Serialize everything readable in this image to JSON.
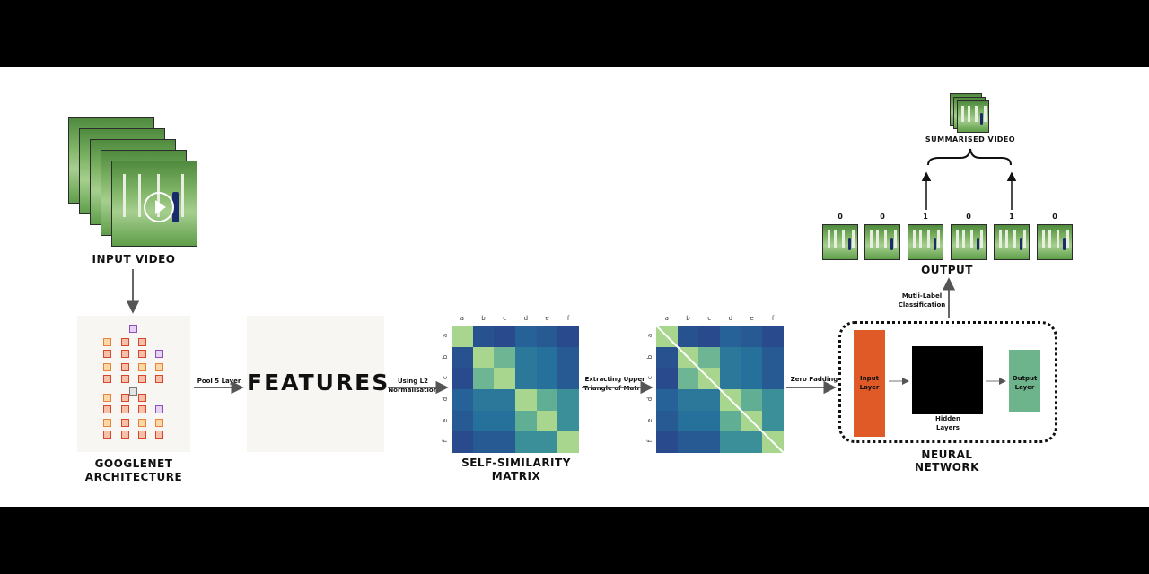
{
  "labels": {
    "input_video": "INPUT VIDEO",
    "googlenet_line1": "GOOGLENET",
    "googlenet_line2": "ARCHITECTURE",
    "features": "FEATURES",
    "ssm_line1": "SELF-SIMILARITY",
    "ssm_line2": "MATRIX",
    "nn_line1": "NEURAL",
    "nn_line2": "NETWORK",
    "output": "OUTPUT",
    "summarised_video": "SUMMARISED VIDEO"
  },
  "edges": {
    "pool5": "Pool 5 Layer",
    "l2_line1": "Using L2",
    "l2_line2": "Normalisation",
    "upper_line1": "Extracting Upper",
    "upper_line2": "Triangle of Matrix",
    "zero_padding": "Zero Padding",
    "multilabel_line1": "Mutli-Label",
    "multilabel_line2": "Classification"
  },
  "network": {
    "input_layer_line1": "Input",
    "input_layer_line2": "Layer",
    "hidden_line1": "Hidden",
    "hidden_line2": "Layers",
    "output_layer_line1": "Output",
    "output_layer_line2": "Layer"
  },
  "matrix": {
    "labels": [
      "a",
      "b",
      "c",
      "d",
      "e",
      "f"
    ],
    "values": [
      [
        1.0,
        0.15,
        0.1,
        0.25,
        0.2,
        0.1
      ],
      [
        0.15,
        1.0,
        0.8,
        0.4,
        0.35,
        0.2
      ],
      [
        0.1,
        0.8,
        1.0,
        0.4,
        0.35,
        0.2
      ],
      [
        0.25,
        0.4,
        0.4,
        1.0,
        0.75,
        0.55
      ],
      [
        0.2,
        0.35,
        0.35,
        0.75,
        1.0,
        0.55
      ],
      [
        0.1,
        0.2,
        0.2,
        0.55,
        0.55,
        1.0
      ]
    ]
  },
  "output_bits": [
    "0",
    "0",
    "1",
    "0",
    "1",
    "0"
  ],
  "colors": {
    "input_layer": "#e05a28",
    "hidden_layers": "#000000",
    "output_layer": "#6db38c",
    "matrix_high": "#a8d68e",
    "matrix_low": "#2b3a86"
  }
}
